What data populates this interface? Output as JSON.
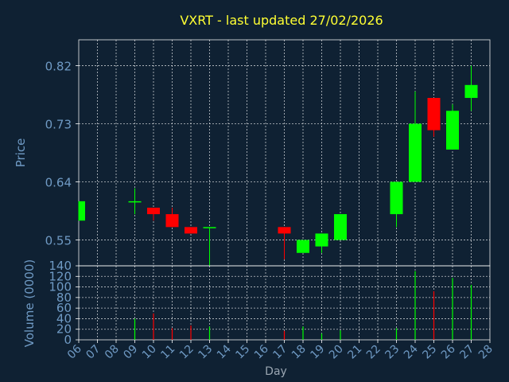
{
  "title": "VXRT - last updated 27/02/2026",
  "chart_data": [
    {
      "type": "candlestick",
      "ylabel": "Price",
      "ylim": [
        0.51,
        0.86
      ],
      "yticks": [
        "0.55",
        "0.64",
        "0.73",
        "0.82"
      ],
      "x_categories": [
        "06",
        "07",
        "08",
        "09",
        "10",
        "11",
        "12",
        "13",
        "14",
        "15",
        "16",
        "17",
        "18",
        "19",
        "20",
        "21",
        "22",
        "23",
        "24",
        "25",
        "26",
        "27",
        "28"
      ],
      "candles": [
        {
          "day": "06",
          "open": 0.58,
          "close": 0.61,
          "high": 0.61,
          "low": 0.58,
          "dir": "up"
        },
        {
          "day": "09",
          "open": 0.61,
          "close": 0.61,
          "high": 0.63,
          "low": 0.59,
          "dir": "up"
        },
        {
          "day": "10",
          "open": 0.6,
          "close": 0.59,
          "high": 0.6,
          "low": 0.58,
          "dir": "down"
        },
        {
          "day": "11",
          "open": 0.59,
          "close": 0.57,
          "high": 0.6,
          "low": 0.57,
          "dir": "down"
        },
        {
          "day": "12",
          "open": 0.57,
          "close": 0.56,
          "high": 0.57,
          "low": 0.56,
          "dir": "down"
        },
        {
          "day": "13",
          "open": 0.57,
          "close": 0.57,
          "high": 0.57,
          "low": 0.51,
          "dir": "up"
        },
        {
          "day": "17",
          "open": 0.57,
          "close": 0.56,
          "high": 0.57,
          "low": 0.52,
          "dir": "down"
        },
        {
          "day": "18",
          "open": 0.53,
          "close": 0.55,
          "high": 0.55,
          "low": 0.53,
          "dir": "up"
        },
        {
          "day": "19",
          "open": 0.54,
          "close": 0.56,
          "high": 0.56,
          "low": 0.53,
          "dir": "up"
        },
        {
          "day": "20",
          "open": 0.55,
          "close": 0.59,
          "high": 0.59,
          "low": 0.55,
          "dir": "up"
        },
        {
          "day": "23",
          "open": 0.59,
          "close": 0.64,
          "high": 0.64,
          "low": 0.57,
          "dir": "up"
        },
        {
          "day": "24",
          "open": 0.64,
          "close": 0.73,
          "high": 0.78,
          "low": 0.64,
          "dir": "up"
        },
        {
          "day": "25",
          "open": 0.77,
          "close": 0.72,
          "high": 0.77,
          "low": 0.71,
          "dir": "down"
        },
        {
          "day": "26",
          "open": 0.69,
          "close": 0.75,
          "high": 0.76,
          "low": 0.69,
          "dir": "up"
        },
        {
          "day": "27",
          "open": 0.77,
          "close": 0.79,
          "high": 0.82,
          "low": 0.75,
          "dir": "up"
        }
      ]
    },
    {
      "type": "bar",
      "ylabel": "Volume (0000)",
      "xlabel": "Day",
      "ylim": [
        0,
        140
      ],
      "yticks": [
        "0",
        "20",
        "40",
        "60",
        "80",
        "100",
        "120",
        "140"
      ],
      "categories": [
        "06",
        "07",
        "08",
        "09",
        "10",
        "11",
        "12",
        "13",
        "14",
        "15",
        "16",
        "17",
        "18",
        "19",
        "20",
        "21",
        "22",
        "23",
        "24",
        "25",
        "26",
        "27",
        "28"
      ],
      "bars": [
        {
          "day": "06",
          "value": 0,
          "dir": "up"
        },
        {
          "day": "09",
          "value": 40,
          "dir": "up"
        },
        {
          "day": "10",
          "value": 50,
          "dir": "down"
        },
        {
          "day": "11",
          "value": 22,
          "dir": "down"
        },
        {
          "day": "12",
          "value": 27,
          "dir": "down"
        },
        {
          "day": "13",
          "value": 25,
          "dir": "up"
        },
        {
          "day": "17",
          "value": 17,
          "dir": "down"
        },
        {
          "day": "18",
          "value": 25,
          "dir": "up"
        },
        {
          "day": "19",
          "value": 12,
          "dir": "up"
        },
        {
          "day": "20",
          "value": 18,
          "dir": "up"
        },
        {
          "day": "23",
          "value": 22,
          "dir": "up"
        },
        {
          "day": "24",
          "value": 130,
          "dir": "up"
        },
        {
          "day": "25",
          "value": 92,
          "dir": "down"
        },
        {
          "day": "26",
          "value": 117,
          "dir": "up"
        },
        {
          "day": "27",
          "value": 104,
          "dir": "up"
        }
      ]
    }
  ],
  "colors": {
    "background": "#0f2133",
    "up": "#00ff00",
    "down": "#ff0000",
    "title": "#ffff33",
    "axis": "#6f9ac4",
    "grid": "#ffffff"
  }
}
